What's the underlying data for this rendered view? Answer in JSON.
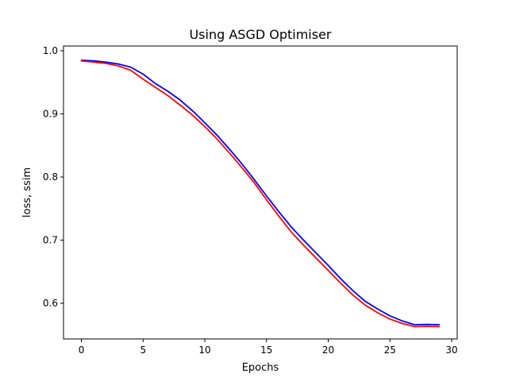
{
  "chart_data": {
    "type": "line",
    "title": "Using ASGD Optimiser",
    "xlabel": "Epochs",
    "ylabel": "loss, ssim",
    "xlim": [
      -1.45,
      30.45
    ],
    "ylim": [
      0.5435,
      1.0075
    ],
    "xticks": [
      0,
      5,
      10,
      15,
      20,
      25,
      30
    ],
    "yticks": [
      0.6,
      0.7,
      0.8,
      0.9,
      1.0
    ],
    "xtick_labels": [
      "0",
      "5",
      "10",
      "15",
      "20",
      "25",
      "30"
    ],
    "ytick_labels": [
      "0.6",
      "0.7",
      "0.8",
      "0.9",
      "1.0"
    ],
    "grid": false,
    "legend": "none",
    "x": [
      0,
      1,
      2,
      3,
      4,
      5,
      6,
      7,
      8,
      9,
      10,
      11,
      12,
      13,
      14,
      15,
      16,
      17,
      18,
      19,
      20,
      21,
      22,
      23,
      24,
      25,
      26,
      27,
      28,
      29
    ],
    "series": [
      {
        "color": "#0000ff",
        "values": [
          0.985,
          0.984,
          0.982,
          0.979,
          0.974,
          0.963,
          0.948,
          0.936,
          0.922,
          0.905,
          0.886,
          0.866,
          0.844,
          0.821,
          0.796,
          0.77,
          0.745,
          0.721,
          0.7,
          0.68,
          0.66,
          0.639,
          0.62,
          0.603,
          0.591,
          0.58,
          0.572,
          0.566,
          0.5665,
          0.566
        ]
      },
      {
        "color": "#ff0000",
        "values": [
          0.984,
          0.982,
          0.98,
          0.976,
          0.969,
          0.955,
          0.942,
          0.929,
          0.914,
          0.898,
          0.88,
          0.86,
          0.838,
          0.815,
          0.791,
          0.764,
          0.738,
          0.713,
          0.692,
          0.672,
          0.652,
          0.632,
          0.613,
          0.597,
          0.585,
          0.575,
          0.568,
          0.563,
          0.5635,
          0.563
        ]
      }
    ]
  }
}
